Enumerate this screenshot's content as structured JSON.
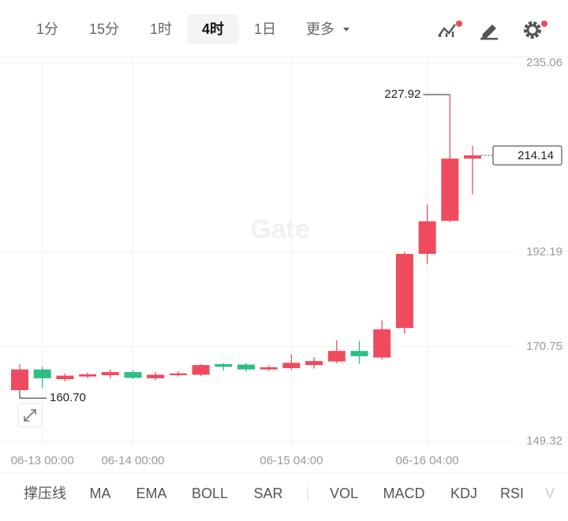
{
  "toolbar": {
    "tabs": [
      "1分",
      "15分",
      "1时",
      "4时",
      "1日",
      "更多"
    ],
    "active_tab": "4时"
  },
  "chart_data": {
    "type": "candlestick",
    "categories": [
      null,
      "06-13 00:00",
      null,
      null,
      null,
      "06-14 00:00",
      null,
      null,
      null,
      null,
      null,
      null,
      "06-15 04:00",
      null,
      null,
      null,
      null,
      null,
      "06-16 04:00",
      null,
      null
    ],
    "open": [
      160.9,
      165.6,
      163.4,
      164.0,
      164.3,
      165.0,
      163.6,
      164.3,
      164.4,
      166.8,
      166.7,
      165.6,
      165.9,
      166.6,
      167.4,
      169.8,
      168.3,
      175.0,
      191.8,
      199.3,
      213.4
    ],
    "high": [
      166.8,
      166.2,
      164.7,
      164.9,
      165.6,
      165.4,
      165.0,
      165.2,
      166.8,
      167.0,
      167.0,
      166.5,
      169.0,
      168.4,
      172.2,
      172.1,
      176.7,
      192.3,
      203.0,
      227.92,
      216.3
    ],
    "low": [
      160.7,
      161.5,
      162.9,
      163.6,
      163.6,
      163.4,
      163.2,
      164.0,
      164.1,
      165.4,
      165.1,
      165.3,
      165.5,
      165.8,
      167.0,
      166.9,
      167.8,
      173.7,
      189.5,
      199.0,
      205.3
    ],
    "close": [
      165.6,
      163.6,
      164.2,
      164.5,
      165.0,
      163.7,
      164.4,
      164.7,
      166.6,
      166.2,
      165.6,
      166.1,
      167.1,
      167.5,
      169.8,
      168.6,
      174.7,
      191.8,
      199.2,
      213.4,
      214.14
    ],
    "up_color": "#f04a5e",
    "down_color": "#2ebd85",
    "ylim": [
      147.5,
      236.5
    ],
    "yticks": [
      149.32,
      170.75,
      192.19,
      235.06
    ],
    "grid": true,
    "high_label": "227.92",
    "low_label": "160.70",
    "last_label": "214.14",
    "watermark": "Gate"
  },
  "indicators": [
    "撑压线",
    "MA",
    "EMA",
    "BOLL",
    "SAR",
    "VOL",
    "MACD",
    "KDJ",
    "RSI",
    "V"
  ]
}
